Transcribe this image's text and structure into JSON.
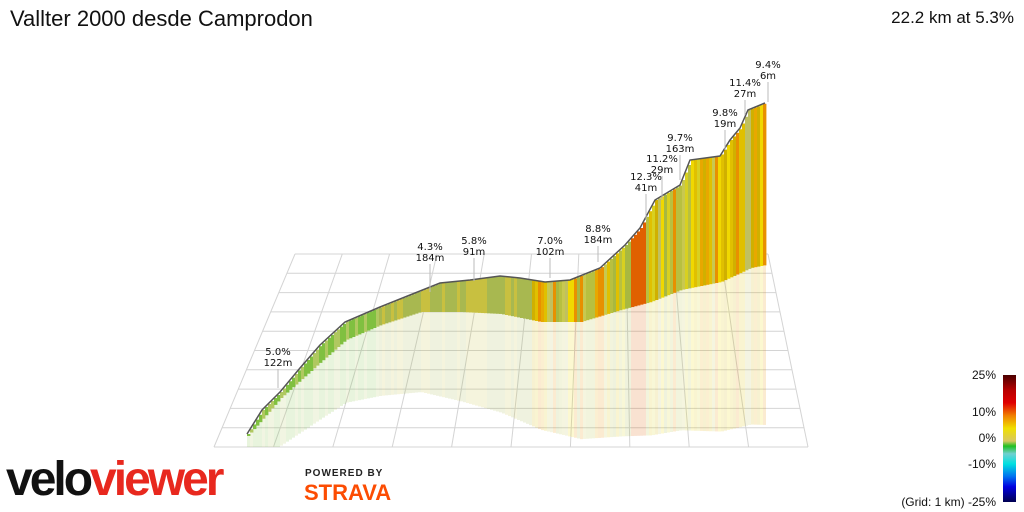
{
  "title": "Vallter 2000 desde Camprodon",
  "summary": "22.2 km at 5.3%",
  "annotations": [
    {
      "pct": "5.0%",
      "len": "122m"
    },
    {
      "pct": "4.3%",
      "len": "184m"
    },
    {
      "pct": "5.8%",
      "len": "91m"
    },
    {
      "pct": "7.0%",
      "len": "102m"
    },
    {
      "pct": "8.8%",
      "len": "184m"
    },
    {
      "pct": "12.3%",
      "len": "41m"
    },
    {
      "pct": "11.2%",
      "len": "29m"
    },
    {
      "pct": "9.7%",
      "len": "163m"
    },
    {
      "pct": "9.8%",
      "len": "19m"
    },
    {
      "pct": "11.4%",
      "len": "27m"
    },
    {
      "pct": "9.4%",
      "len": "6m"
    }
  ],
  "legend": {
    "top": "25%",
    "mid_high": "10%",
    "zero": "0%",
    "mid_low": "-10%",
    "bottom": "(Grid: 1 km) -25%"
  },
  "brand": {
    "velo": "velo",
    "viewer": "viewer",
    "powered_by": "POWERED BY",
    "strava": "STRAVA",
    "strava_color": "#fc4c02",
    "viewer_color": "#e8281e"
  }
}
